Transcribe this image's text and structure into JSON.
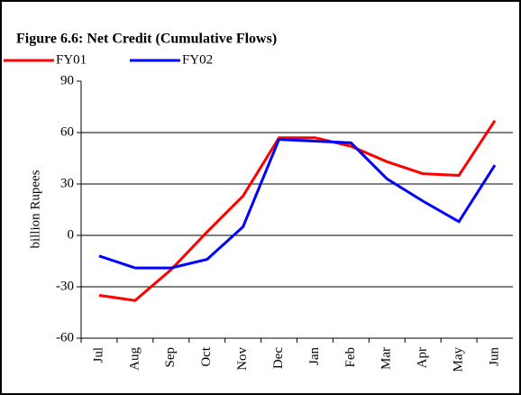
{
  "chart_data": {
    "type": "line",
    "title": "Figure 6.6: Net Credit (Cumulative Flows)",
    "y_label": "billion Rupees",
    "categories": [
      "Jul",
      "Aug",
      "Sep",
      "Oct",
      "Nov",
      "Dec",
      "Jan",
      "Feb",
      "Mar",
      "Apr",
      "May",
      "Jun"
    ],
    "series": [
      {
        "name": "FY01",
        "color": "#ff0000",
        "values": [
          -35,
          -38,
          -20,
          2,
          23,
          57,
          57,
          52,
          43,
          36,
          35,
          67
        ]
      },
      {
        "name": "FY02",
        "color": "#0000ff",
        "values": [
          -12,
          -19,
          -19,
          -14,
          5,
          56,
          55,
          54,
          33,
          20,
          8,
          41
        ]
      }
    ],
    "ylim": [
      -60,
      90
    ],
    "yticks": [
      -60,
      -30,
      0,
      30,
      60,
      90
    ],
    "grid": true,
    "legend": "top-left"
  }
}
